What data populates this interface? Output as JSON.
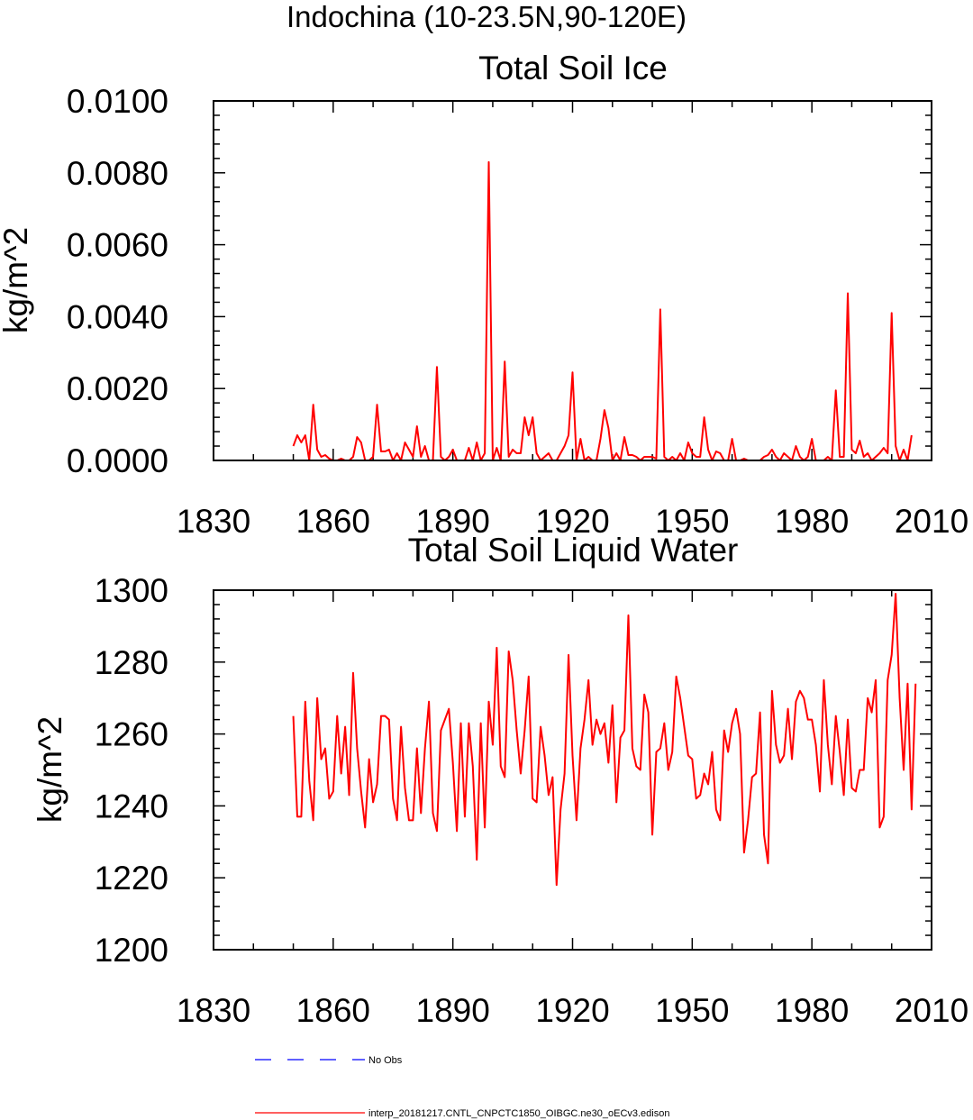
{
  "figure_title": "Indochina (10-23.5N,90-120E)",
  "legend": {
    "entries": [
      {
        "label": "No Obs",
        "color": "#0000ff",
        "style": "dashed"
      },
      {
        "label": "interp_20181217.CNTL_CNPCTC1850_OIBGC.ne30_oECv3.edison",
        "color": "#ff0000",
        "style": "solid"
      }
    ]
  },
  "chart_data": [
    {
      "type": "line",
      "title": "Total Soil Ice",
      "xlabel": "",
      "ylabel": "kg/m^2",
      "xlim": [
        1830,
        2010
      ],
      "ylim": [
        0,
        0.01
      ],
      "xticks": [
        1830,
        1860,
        1890,
        1920,
        1950,
        1980,
        2010
      ],
      "xtick_labels": [
        "1830",
        "1860",
        "1890",
        "1920",
        "1950",
        "1980",
        "2010"
      ],
      "yticks": [
        0,
        0.002,
        0.004,
        0.006,
        0.008,
        0.01
      ],
      "ytick_labels": [
        "0.0000",
        "0.0020",
        "0.0040",
        "0.0060",
        "0.0080",
        "0.0100"
      ],
      "x_start": 1850,
      "series": [
        {
          "name": "interp_20181217.CNTL_CNPCTC1850_OIBGC.ne30_oECv3.edison",
          "color": "#ff0000",
          "values": [
            0.0004,
            0.0007,
            0.0005,
            0.0007,
            0.0,
            0.00155,
            0.0003,
            0.0001,
            0.00015,
            5e-05,
            0.0,
            0.0,
            5e-05,
            0.0,
            0.0,
            0.0001,
            0.00065,
            0.0005,
            0.0,
            0.0,
            0.0001,
            0.00155,
            0.00025,
            0.00025,
            0.0003,
            0.0,
            0.0002,
            0.0,
            0.0005,
            0.0003,
            0.0001,
            0.00095,
            0.0001,
            0.0004,
            0.0,
            0.0,
            0.0026,
            0.0001,
            0.0,
            0.0001,
            0.0003,
            0.0,
            0.0,
            0.0,
            0.00035,
            0.0,
            0.0005,
            0.0,
            0.0002,
            0.0083,
            0.0,
            0.00035,
            0.0,
            0.00275,
            0.0001,
            0.0003,
            0.0002,
            0.0002,
            0.0012,
            0.0007,
            0.0012,
            0.0002,
            0.0,
            0.0001,
            0.0002,
            0.0,
            0.0,
            0.0002,
            0.0004,
            0.0007,
            0.00245,
            0.0,
            0.0006,
            0.0,
            0.0001,
            0.0,
            0.0,
            0.0006,
            0.0014,
            0.0009,
            0.0,
            0.0002,
            0.0,
            0.00065,
            0.00015,
            0.00015,
            0.0001,
            0.0,
            0.0001,
            0.0001,
            0.0001,
            5e-05,
            0.0042,
            0.0001,
            0.0,
            0.0001,
            0.0,
            0.0002,
            0.0,
            0.0005,
            0.0002,
            0.0001,
            0.0001,
            0.0012,
            0.0003,
            0.0,
            0.00025,
            0.0002,
            0.0,
            0.0,
            0.0006,
            0.0,
            0.0,
            5e-05,
            0.0,
            0.0,
            0.0,
            0.0,
            0.0001,
            0.00015,
            0.0003,
            0.0001,
            0.0,
            0.0002,
            0.0001,
            0.0,
            0.0004,
            0.0001,
            0.0,
            0.0001,
            0.0006,
            0.0,
            0.0,
            0.0,
            0.0001,
            0.0,
            0.00195,
            0.0001,
            0.0001,
            0.00465,
            0.0003,
            0.0002,
            0.00055,
            0.0001,
            0.0002,
            0.0,
            0.0001,
            0.0002,
            0.00035,
            0.0002,
            0.0041,
            0.0004,
            0.0,
            0.0003,
            0.0,
            0.0007
          ]
        }
      ]
    },
    {
      "type": "line",
      "title": "Total Soil Liquid Water",
      "xlabel": "",
      "ylabel": "kg/m^2",
      "xlim": [
        1830,
        2010
      ],
      "ylim": [
        1200,
        1300
      ],
      "xticks": [
        1830,
        1860,
        1890,
        1920,
        1950,
        1980,
        2010
      ],
      "xtick_labels": [
        "1830",
        "1860",
        "1890",
        "1920",
        "1950",
        "1980",
        "2010"
      ],
      "yticks": [
        1200,
        1220,
        1240,
        1260,
        1280,
        1300
      ],
      "ytick_labels": [
        "1200",
        "1220",
        "1240",
        "1260",
        "1280",
        "1300"
      ],
      "x_start": 1850,
      "series": [
        {
          "name": "interp_20181217.CNTL_CNPCTC1850_OIBGC.ne30_oECv3.edison",
          "color": "#ff0000",
          "values": [
            1265,
            1237,
            1237,
            1269,
            1247,
            1236,
            1270,
            1253,
            1256,
            1242,
            1244,
            1265,
            1249,
            1262,
            1243,
            1277,
            1256,
            1244,
            1234,
            1253,
            1241,
            1246,
            1265,
            1265,
            1264,
            1242,
            1236,
            1262,
            1245,
            1236,
            1236,
            1256,
            1238,
            1256,
            1269,
            1238,
            1233,
            1261,
            1264,
            1267,
            1252,
            1233,
            1263,
            1237,
            1263,
            1251,
            1225,
            1263,
            1234,
            1269,
            1257,
            1284,
            1251,
            1248,
            1283,
            1275,
            1261,
            1249,
            1261,
            1276,
            1242,
            1241,
            1262,
            1254,
            1243,
            1248,
            1218,
            1239,
            1249,
            1282,
            1254,
            1236,
            1256,
            1264,
            1275,
            1257,
            1264,
            1260,
            1263,
            1252,
            1268,
            1241,
            1259,
            1261,
            1293,
            1256,
            1251,
            1250,
            1271,
            1266,
            1232,
            1255,
            1256,
            1263,
            1250,
            1255,
            1276,
            1270,
            1262,
            1254,
            1253,
            1242,
            1243,
            1249,
            1246,
            1255,
            1239,
            1236,
            1261,
            1255,
            1263,
            1267,
            1260,
            1227,
            1236,
            1248,
            1249,
            1266,
            1232,
            1224,
            1272,
            1257,
            1252,
            1254,
            1267,
            1253,
            1269,
            1272,
            1270,
            1264,
            1264,
            1257,
            1244,
            1275,
            1257,
            1246,
            1265,
            1255,
            1243,
            1264,
            1245,
            1244,
            1250,
            1250,
            1270,
            1266,
            1275,
            1234,
            1237,
            1275,
            1282,
            1299,
            1270,
            1250,
            1274,
            1239,
            1274
          ]
        }
      ]
    }
  ]
}
